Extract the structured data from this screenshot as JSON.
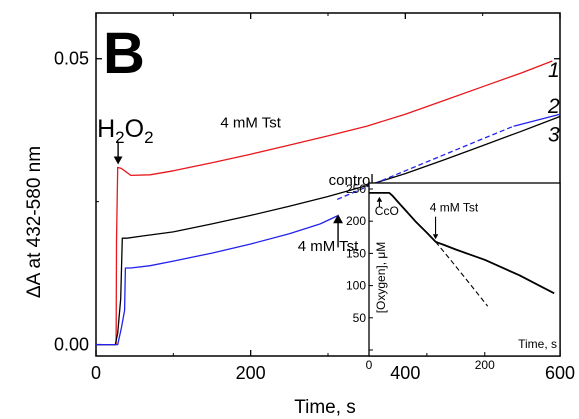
{
  "chart_data": {
    "type": "line",
    "panel_label": "B",
    "xlabel": "Time, s",
    "ylabel": "ΔA at 432-580 nm",
    "xlim": [
      0,
      600
    ],
    "ylim": [
      -0.002,
      0.058
    ],
    "x_ticks": [
      0,
      200,
      400,
      600
    ],
    "x_tick_labels": [
      "0",
      "200",
      "400",
      "600"
    ],
    "y_ticks": [
      0.0,
      0.05
    ],
    "y_tick_labels": [
      "0.00",
      "0.05"
    ],
    "series": [
      {
        "name": "1",
        "color": "#e8171c",
        "dash": "solid",
        "x": [
          0,
          15,
          26,
          26.5,
          28,
          33,
          45,
          70,
          100,
          150,
          200,
          250,
          300,
          350,
          400,
          450,
          500,
          550,
          590
        ],
        "y": [
          0.0,
          0.0,
          0.0,
          0.018,
          0.031,
          0.0308,
          0.0296,
          0.0297,
          0.0304,
          0.0318,
          0.0333,
          0.0349,
          0.0365,
          0.0382,
          0.0403,
          0.0427,
          0.0451,
          0.0475,
          0.0496
        ]
      },
      {
        "name": "2",
        "color": "#000000",
        "dash": "solid",
        "x": [
          0,
          20,
          25,
          28,
          32,
          34,
          40,
          60,
          100,
          150,
          200,
          250,
          300,
          350,
          400,
          450,
          500,
          550,
          600
        ],
        "y": [
          0.0,
          0.0,
          0.0,
          0.002,
          0.008,
          0.0186,
          0.0186,
          0.019,
          0.0197,
          0.0211,
          0.0226,
          0.0242,
          0.0259,
          0.0278,
          0.0299,
          0.0323,
          0.0348,
          0.0373,
          0.0399
        ]
      },
      {
        "name": "3",
        "color": "#2222ee",
        "dash": "solid",
        "x": [
          0,
          22,
          28,
          33,
          37,
          38,
          45,
          70,
          100,
          150,
          200,
          250,
          290,
          312
        ],
        "y": [
          0.0,
          0.0,
          0.0,
          0.003,
          0.006,
          0.0134,
          0.0134,
          0.0138,
          0.0146,
          0.016,
          0.0176,
          0.0194,
          0.0211,
          0.0225
        ]
      },
      {
        "name": "3",
        "color": "#2222ee",
        "dash": "dashed",
        "x": [
          312,
          350,
          400,
          450,
          500,
          540
        ],
        "y": [
          0.0254,
          0.0276,
          0.0304,
          0.0332,
          0.036,
          0.0382
        ]
      },
      {
        "name": "3",
        "color": "#2222ee",
        "dash": "solid",
        "x": [
          540,
          560,
          580,
          600
        ],
        "y": [
          0.0382,
          0.0389,
          0.0396,
          0.0403
        ]
      }
    ],
    "annotations": [
      {
        "text_parts": [
          "H",
          "2",
          "O",
          "2"
        ],
        "arrow_x": 26,
        "arrow_y_top": 0.0355,
        "arrow_y_bottom": 0.0315
      },
      {
        "text": "4 mM Tst",
        "x": 200,
        "y": 0.038
      },
      {
        "text": "control",
        "x": 330,
        "y": 0.0279
      },
      {
        "text": "4 mM Tst",
        "x": 300,
        "y": 0.0164,
        "arrow_x": 313,
        "arrow_y_bottom": 0.017,
        "arrow_y_top": 0.0228
      },
      {
        "text": "1",
        "x": 592,
        "y": 0.0468
      },
      {
        "text": "2",
        "x": 592,
        "y": 0.0405
      },
      {
        "text": "3",
        "x": 592,
        "y": 0.0355
      }
    ],
    "inset": {
      "type": "line",
      "xlabel": "Time, s",
      "ylabel": "[Oxygen],   μM",
      "xlim": [
        0,
        330
      ],
      "ylim": [
        0,
        250
      ],
      "x_ticks": [
        0,
        200
      ],
      "x_tick_labels": [
        "0",
        "200"
      ],
      "y_ticks": [
        0,
        50,
        100,
        150,
        200,
        250
      ],
      "y_tick_labels": [
        "",
        "50",
        "100",
        "150",
        "200",
        "250"
      ],
      "series": [
        {
          "name": "oxygen",
          "dash": "solid",
          "x": [
            0,
            5,
            35,
            40,
            50,
            65,
            80,
            100,
            115,
            130,
            150,
            175,
            200,
            230,
            260,
            290,
            320
          ],
          "y": [
            244,
            244,
            244,
            240,
            230,
            215,
            200,
            182,
            168,
            163,
            156,
            148,
            140,
            128,
            116,
            102,
            88
          ]
        },
        {
          "name": "extrapolation",
          "dash": "dashed",
          "x": [
            115,
            140,
            165,
            190,
            205
          ],
          "y": [
            168,
            141,
            113,
            85,
            68
          ]
        }
      ],
      "annotations": [
        {
          "text": "CcO",
          "x": 10,
          "y": 210,
          "arrow_x": 18,
          "arrow_y_bottom": 238,
          "arrow_y_top": 222
        },
        {
          "text": "4 mM Tst",
          "x": 105,
          "y": 215,
          "arrow_x": 115,
          "arrow_y_top": 207,
          "arrow_y_bottom": 172
        }
      ]
    }
  }
}
